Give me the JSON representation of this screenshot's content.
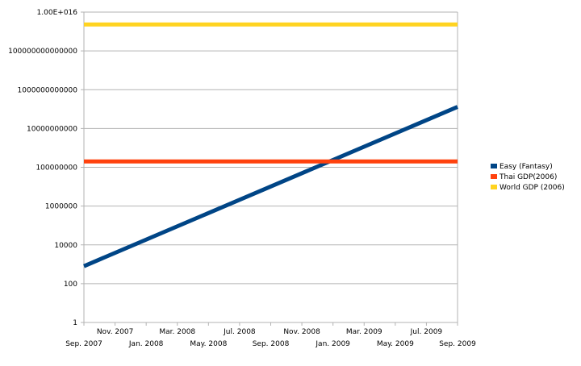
{
  "chart_data": {
    "type": "line",
    "title": "",
    "xlabel": "",
    "ylabel": "",
    "yscale": "log",
    "ylim": [
      1,
      10000000000000000
    ],
    "grid": "horizontal",
    "legend_position": "right",
    "y_tick_values": [
      1,
      100,
      10000,
      1000000,
      100000000,
      10000000000,
      1000000000000,
      100000000000000,
      10000000000000000
    ],
    "y_tick_labels": [
      "1",
      "100",
      "10000",
      "1000000",
      "100000000",
      "10000000000",
      "1000000000000",
      "100000000000000",
      "1.00E+016"
    ],
    "x_tick_labels": [
      "Sep. 2007",
      "Nov. 2007",
      "Jan. 2008",
      "Mar. 2008",
      "May. 2008",
      "Jul. 2008",
      "Sep. 2008",
      "Nov. 2008",
      "Jan. 2009",
      "Mar. 2009",
      "May. 2009",
      "Jul. 2009",
      "Sep. 2009"
    ],
    "series": [
      {
        "name": "Easy (Fantasy)",
        "color": "#004586",
        "x": [
          "Sep. 2007",
          "Sep. 2009"
        ],
        "values": [
          800,
          130000000000
        ]
      },
      {
        "name": "Thai GDP(2006)",
        "color": "#ff420e",
        "x": [
          "Sep. 2007",
          "Sep. 2009"
        ],
        "values": [
          200000000,
          200000000
        ]
      },
      {
        "name": "World GDP (2006)",
        "color": "#ffd320",
        "x": [
          "Sep. 2007",
          "Sep. 2009"
        ],
        "values": [
          2300000000000000,
          2300000000000000
        ]
      }
    ]
  }
}
